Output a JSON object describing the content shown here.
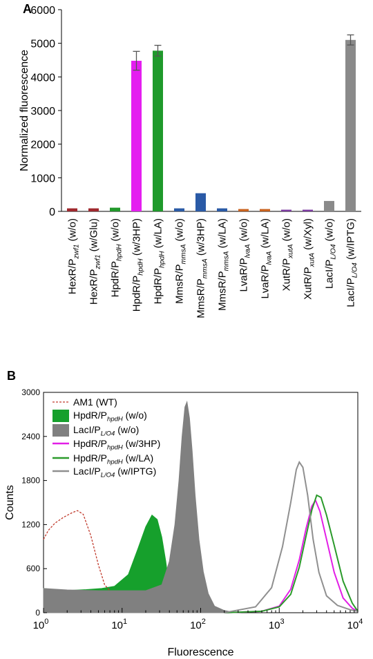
{
  "panels": {
    "a": {
      "label": "A"
    },
    "b": {
      "label": "B"
    }
  },
  "chart_data": [
    {
      "type": "bar",
      "ylabel": "Normalized fluorescence",
      "ylim": [
        0,
        6000
      ],
      "yticks": [
        "0",
        "1000",
        "2000",
        "3000",
        "4000",
        "5000",
        "6000"
      ],
      "categories": [
        {
          "pre": "HexR/P",
          "sub": "zwf1",
          "post": " (w/o)"
        },
        {
          "pre": "HexR/P",
          "sub": "zwf1",
          "post": " (w/Glu)"
        },
        {
          "pre": "HpdR/P",
          "sub": "hpdH",
          "post": " (w/o)"
        },
        {
          "pre": "HpdR/P",
          "sub": "hpdH",
          "post": " (w/3HP)"
        },
        {
          "pre": "HpdR/P",
          "sub": "hpdH",
          "post": " (w/LA)"
        },
        {
          "pre": "MmsR/P",
          "sub": "mmsA",
          "post": " (w/o)"
        },
        {
          "pre": "MmsR/P",
          "sub": "mmsA",
          "post": " (w/3HP)"
        },
        {
          "pre": "MmsR/P",
          "sub": "mmsA",
          "post": " (w/LA)"
        },
        {
          "pre": "LvaR/P",
          "sub": "lvaA",
          "post": " (w/o)"
        },
        {
          "pre": "LvaR/P",
          "sub": "lvaA",
          "post": " (w/LA)"
        },
        {
          "pre": "XutR/P",
          "sub": "xutA",
          "post": " (w/o)"
        },
        {
          "pre": "XutR/P",
          "sub": "xutA",
          "post": " (w/Xyl)"
        },
        {
          "pre": "LacI/P",
          "sub": "L/O4",
          "post": " (w/o)"
        },
        {
          "pre": "LacI/P",
          "sub": "L/O4",
          "post": " (w/IPTG)"
        }
      ],
      "values": [
        90,
        90,
        110,
        4480,
        4780,
        90,
        540,
        90,
        70,
        70,
        50,
        50,
        310,
        5100
      ],
      "errors": [
        10,
        10,
        10,
        280,
        160,
        10,
        30,
        10,
        10,
        10,
        10,
        10,
        20,
        150
      ],
      "colors": [
        "#a0282d",
        "#a0282d",
        "#22992b",
        "#e41ef0",
        "#1f9a2b",
        "#2a5aa6",
        "#2a5aa6",
        "#2a5aa6",
        "#c9631f",
        "#c9631f",
        "#7b3aa0",
        "#7b3aa0",
        "#8a8a8a",
        "#8a8a8a"
      ]
    },
    {
      "type": "area",
      "xlabel": "Fluorescence",
      "ylabel": "Counts",
      "xscale": "log",
      "xlim": [
        1,
        10000
      ],
      "ylim": [
        0,
        3000
      ],
      "xticks": [
        {
          "base": "10",
          "exp": "0"
        },
        {
          "base": "10",
          "exp": "1"
        },
        {
          "base": "10",
          "exp": "2"
        },
        {
          "base": "10",
          "exp": "3"
        },
        {
          "base": "10",
          "exp": "4"
        }
      ],
      "yticks": [
        "0",
        "600",
        "1200",
        "1800",
        "2400",
        "3000"
      ],
      "legend_position": "top-left",
      "series": [
        {
          "name": {
            "pre": "AM1 (WT)",
            "sub": "",
            "post": ""
          },
          "style": "dashed",
          "color": "#c0392b",
          "x": [
            1.0,
            1.15,
            1.4,
            1.8,
            2.3,
            2.7,
            3.2,
            4.0,
            5.0,
            6.0,
            7.0
          ],
          "y": [
            1000,
            1120,
            1220,
            1300,
            1360,
            1390,
            1340,
            1050,
            650,
            380,
            300
          ]
        },
        {
          "name": {
            "pre": "HpdR/P",
            "sub": "hpdH",
            "post": " (w/o)"
          },
          "style": "filled",
          "color": "#16a02c",
          "x": [
            1.0,
            1.5,
            2.2,
            3.5,
            5.5,
            8.0,
            12,
            16,
            20,
            24,
            28,
            32,
            36,
            40,
            44
          ],
          "y": [
            330,
            310,
            305,
            315,
            330,
            360,
            520,
            880,
            1170,
            1330,
            1270,
            1030,
            700,
            330,
            40
          ]
        },
        {
          "name": {
            "pre": "LacI/P",
            "sub": "L/O4",
            "post": " (w/o)"
          },
          "style": "filled",
          "color": "#808080",
          "x": [
            1.0,
            2.0,
            5.0,
            10,
            20,
            32,
            40,
            47,
            53,
            58,
            63,
            67,
            72,
            78,
            85,
            95,
            108,
            125,
            150,
            200,
            280
          ],
          "y": [
            330,
            310,
            300,
            300,
            300,
            380,
            700,
            1200,
            1800,
            2400,
            2800,
            2870,
            2650,
            2200,
            1600,
            1000,
            560,
            260,
            90,
            30,
            0
          ]
        },
        {
          "name": {
            "pre": "HpdR/P",
            "sub": "hpdH",
            "post": " (w/3HP)"
          },
          "style": "line",
          "color": "#e21ee6",
          "x": [
            200,
            600,
            1000,
            1400,
            1800,
            2200,
            2600,
            2900,
            3300,
            4000,
            5000,
            6500,
            8500,
            10000
          ],
          "y": [
            0,
            20,
            90,
            320,
            720,
            1150,
            1450,
            1530,
            1380,
            1000,
            550,
            200,
            60,
            20
          ]
        },
        {
          "name": {
            "pre": "HpdR/P",
            "sub": "hpdH",
            "post": " (w/LA)"
          },
          "style": "line",
          "color": "#2a9a2a",
          "x": [
            200,
            600,
            1000,
            1400,
            1800,
            2200,
            2600,
            3000,
            3400,
            4000,
            5000,
            6500,
            8500,
            10000
          ],
          "y": [
            0,
            20,
            80,
            250,
            620,
            1050,
            1400,
            1600,
            1570,
            1330,
            920,
            430,
            130,
            20
          ]
        },
        {
          "name": {
            "pre": "LacI/P",
            "sub": "L/O4",
            "post": " (w/IPTG)"
          },
          "style": "line",
          "color": "#8f8f8f",
          "x": [
            200,
            500,
            800,
            1100,
            1400,
            1650,
            1800,
            2000,
            2300,
            2700,
            3200,
            4000,
            5500,
            8000,
            10000
          ],
          "y": [
            0,
            80,
            340,
            900,
            1500,
            1950,
            2050,
            1980,
            1600,
            1000,
            550,
            230,
            100,
            40,
            20
          ]
        }
      ]
    }
  ]
}
